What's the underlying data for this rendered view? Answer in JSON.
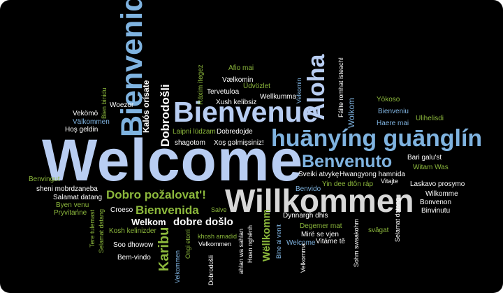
{
  "colors": {
    "background": "#000000",
    "big_blue": "#b8cdf2",
    "mid_blue": "#7fb3e0",
    "green": "#8cb83c",
    "white": "#ffffff",
    "light_gray": "#d8d8d8"
  },
  "words": {
    "welcome": "Welcome",
    "willkommen": "Willkommen",
    "bienvenue": "Bienvenue",
    "bienvenido": "Bienvenido",
    "huanying": "huānyíng guānglín",
    "aloha": "Aloha",
    "benvenuto": "Benvenuto",
    "dobro_pozalovat": "Dobro požalovat'!",
    "bienvenida": "Bienvenida",
    "dobrodosli_big": "Dobrodošli",
    "karibu": "Karibu",
    "welkom_big": "Welkom",
    "dobre_doslo": "dobre došlo",
    "wellkomm": "Wëllkomm",
    "kalos_orisate": "Kalós orísate",
    "afio_mai": "Afio mai",
    "vaelkomin": "Vælkomin",
    "udvozlet": "Üdvözlet",
    "raxim_itegez": "Räxim itegez",
    "tervetuloa": "Tervetuloa",
    "xush_kelibsiz": "Xush kelibsiz",
    "wellkumma": "Wellkumma",
    "velkomin": "Velkomin",
    "failte": "Fáilte romhat isteach!",
    "yokoso": "Yōkoso",
    "bienveniu": "Bienveniu",
    "ulihelisdi": "Ulihelisdi",
    "haere_mai": "Haere mai",
    "wolkom": "Wolkom",
    "bari_galust": "Bari galu'st",
    "witam_was": "Witam Was",
    "laskavo_prosymo": "Laskavo prosymo",
    "vitajte": "Vitajte",
    "wilkomme": "Wilkomme",
    "bonvenon": "Bonvenon",
    "binvinutu": "Binvinutu",
    "selamat_datang_r": "Selamat datang",
    "svagat": "svāgat",
    "sohm_swaakohm": "Sohm swaakohm",
    "sveiki": "Sveiki atvykę",
    "hwangyong": "Hwangyong hamnida",
    "yin_dee": "Yin dee dtôn ráp",
    "benvido": "Benvido",
    "dynnargh": "Dynnargh dhis",
    "degemer": "Degemer mat",
    "mire_se_vjen": "Mirë se vjen",
    "vitame_te": "Vitáme tě",
    "welcome_small": "Welcome",
    "bine_ai_venit": "Bine ai venit",
    "velkomma": "Velkomma",
    "hoan_nghenh": "Hoan nghênh",
    "ahlan": "ahlan wa sahlan",
    "dobrodosli_small": "Dobrodošli",
    "velkommen": "Velkommen",
    "khosh_amadid": "khosh amadid",
    "ongi_etorri": "Ongi etorri",
    "kosh_kelinizder": "Kosh kelinizder",
    "soo_dhowow": "Soo dhowow",
    "bem_vindo": "Bem-vindo",
    "salve": "Salve",
    "croeso": "Croeso",
    "pryvitanne": "Pryvitańne",
    "byen_venu": "Byen venu",
    "salamat_datang": "Salamat datang",
    "sheni": "sheni mobrdzaneba",
    "tere_tulemast": "Tere tulemast",
    "selamat_datang_l": "Selamat datang",
    "benvingut": "Benvingut",
    "hos_geldin": "Hoş geldin",
    "valkommen": "Välkommen",
    "vekomo": "Vekömö",
    "bien_binidu": "Bien binidu",
    "woezor": "Woezor",
    "laipni": "Laipni lūdzam",
    "shagotom": "shagotom",
    "xos_gelmissiniz": "Xoş gǝlmişsiniz!",
    "dobredojde": "Dobredojde"
  }
}
